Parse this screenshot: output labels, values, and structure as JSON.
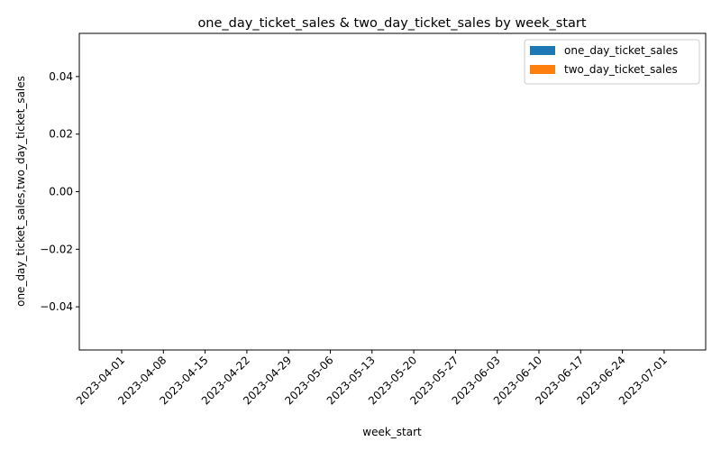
{
  "chart_data": {
    "type": "bar",
    "title": "one_day_ticket_sales & two_day_ticket_sales by week_start",
    "xlabel": "week_start",
    "ylabel": "one_day_ticket_sales,two_day_ticket_sales",
    "categories": [
      "2023-04-01",
      "2023-04-08",
      "2023-04-15",
      "2023-04-22",
      "2023-04-29",
      "2023-05-06",
      "2023-05-13",
      "2023-05-20",
      "2023-05-27",
      "2023-06-03",
      "2023-06-10",
      "2023-06-17",
      "2023-06-24",
      "2023-07-01"
    ],
    "series": [
      {
        "name": "one_day_ticket_sales",
        "color": "#1f77b4",
        "values": [
          0,
          0,
          0,
          0,
          0,
          0,
          0,
          0,
          0,
          0,
          0,
          0,
          0,
          0
        ]
      },
      {
        "name": "two_day_ticket_sales",
        "color": "#ff7f0e",
        "values": [
          0,
          0,
          0,
          0,
          0,
          0,
          0,
          0,
          0,
          0,
          0,
          0,
          0,
          0
        ]
      }
    ],
    "ylim": [
      -0.055,
      0.055
    ],
    "yticks": [
      "0.04",
      "0.02",
      "0.00",
      "−0.02",
      "−0.04"
    ],
    "ytick_values": [
      0.04,
      0.02,
      0.0,
      -0.02,
      -0.04
    ],
    "grid": false,
    "legend_position": "top-right"
  }
}
